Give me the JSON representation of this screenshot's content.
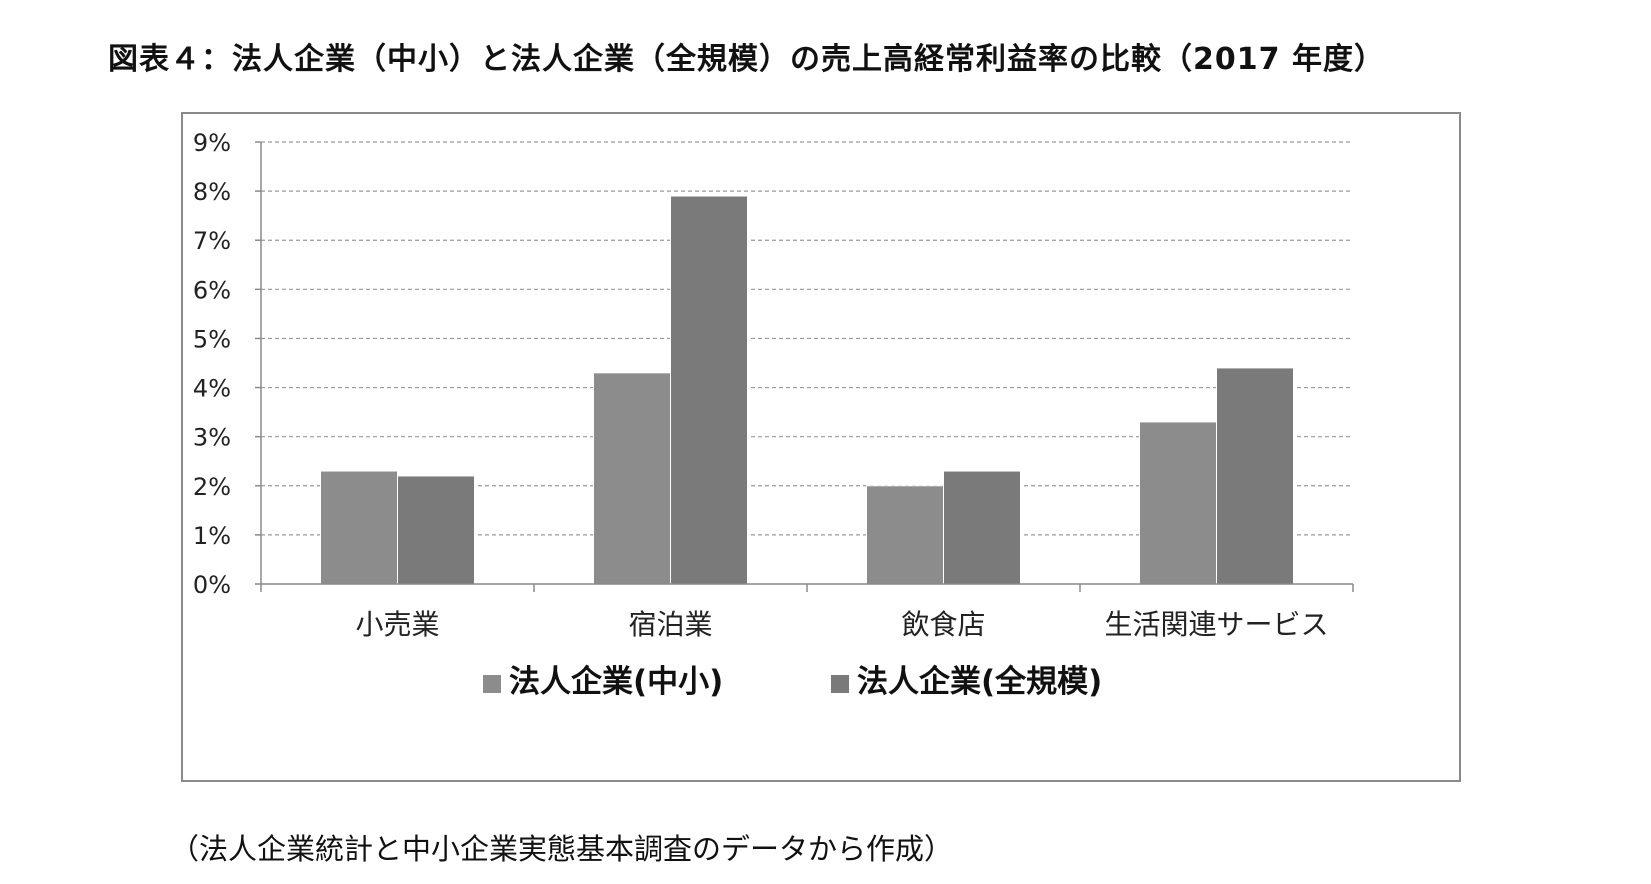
{
  "title": "図表４：法人企業（中小）と法人企業（全規模）の売上高経常利益率の比較（2017 年度）",
  "source_note": "（法人企業統計と中小企業実態基本調査のデータから作成）",
  "colors": {
    "series_sme": "#8c8c8c",
    "series_all": "#7a7a7a",
    "grid": "#9a9a9a",
    "axis": "#8a8a8a",
    "frame": "#8a8a8a"
  },
  "chart_data": {
    "type": "bar",
    "categories": [
      "小売業",
      "宿泊業",
      "飲食店",
      "生活関連サービス"
    ],
    "series": [
      {
        "name": "法人企業(中小)",
        "values": [
          2.3,
          4.3,
          2.0,
          3.3
        ]
      },
      {
        "name": "法人企業(全規模)",
        "values": [
          2.2,
          7.9,
          2.3,
          4.4
        ]
      }
    ],
    "ylim": [
      0,
      9
    ],
    "yticks": [
      "0%",
      "1%",
      "2%",
      "3%",
      "4%",
      "5%",
      "6%",
      "7%",
      "8%",
      "9%"
    ],
    "y_unit": "%",
    "grid": true,
    "grid_style": "dashed",
    "legend_position": "bottom",
    "xlabel": "",
    "ylabel": ""
  }
}
